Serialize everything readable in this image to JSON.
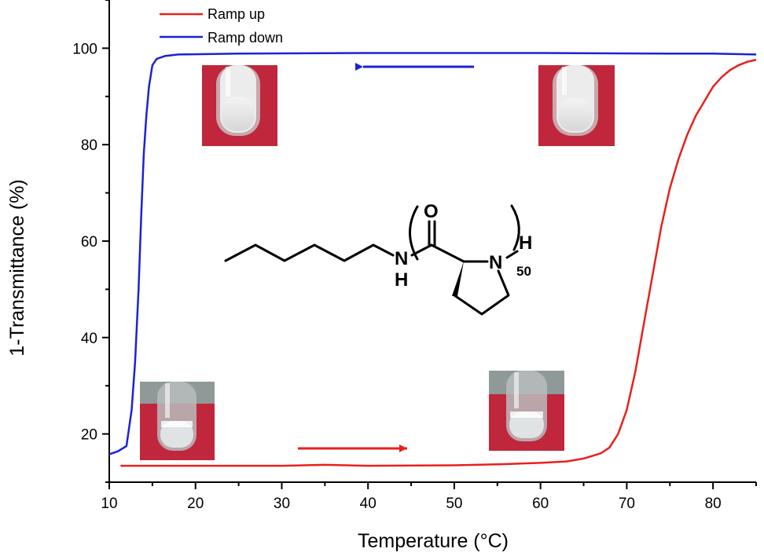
{
  "chart_data": {
    "type": "line",
    "xlabel": "Temperature (°C)",
    "ylabel": "1-Transmittance (%)",
    "xlim": [
      10,
      85
    ],
    "ylim": [
      10,
      110
    ],
    "xticks": [
      10,
      20,
      30,
      40,
      50,
      60,
      70,
      80
    ],
    "yticks": [
      20,
      40,
      60,
      80,
      100
    ],
    "legend": "top-left",
    "grid": false,
    "series": [
      {
        "name": "Ramp up",
        "color": "#e8211d",
        "points": [
          [
            11.3,
            13.4
          ],
          [
            20,
            13.4
          ],
          [
            30,
            13.4
          ],
          [
            35,
            13.6
          ],
          [
            40,
            13.4
          ],
          [
            50,
            13.5
          ],
          [
            55,
            13.7
          ],
          [
            60,
            14.0
          ],
          [
            63,
            14.3
          ],
          [
            65,
            14.9
          ],
          [
            67,
            16.0
          ],
          [
            68,
            17.2
          ],
          [
            69,
            20.0
          ],
          [
            70,
            25.0
          ],
          [
            71,
            33.0
          ],
          [
            72,
            43.0
          ],
          [
            73,
            53.0
          ],
          [
            74,
            63.0
          ],
          [
            75,
            71.0
          ],
          [
            76,
            77.0
          ],
          [
            77,
            82.0
          ],
          [
            78,
            86.0
          ],
          [
            79,
            89.0
          ],
          [
            80,
            92.0
          ],
          [
            81,
            94.0
          ],
          [
            82,
            95.5
          ],
          [
            83,
            96.5
          ],
          [
            84,
            97.2
          ],
          [
            85,
            97.6
          ]
        ]
      },
      {
        "name": "Ramp down",
        "color": "#1c22d4",
        "points": [
          [
            10,
            15.8
          ],
          [
            11,
            16.4
          ],
          [
            12,
            17.5
          ],
          [
            12.6,
            25.0
          ],
          [
            13,
            35.0
          ],
          [
            13.4,
            50.0
          ],
          [
            13.7,
            65.0
          ],
          [
            14.0,
            78.0
          ],
          [
            14.3,
            86.0
          ],
          [
            14.6,
            92.0
          ],
          [
            15.0,
            96.5
          ],
          [
            15.5,
            97.8
          ],
          [
            16.5,
            98.4
          ],
          [
            18,
            98.7
          ],
          [
            25,
            98.9
          ],
          [
            40,
            99.0
          ],
          [
            60,
            99.0
          ],
          [
            75,
            98.9
          ],
          [
            80,
            98.9
          ],
          [
            85,
            98.7
          ]
        ]
      }
    ],
    "annotations": {
      "arrow_ramp_down_color": "#1c22d4",
      "arrow_ramp_up_color": "#e8211d"
    }
  },
  "structure": {
    "labels": {
      "amide_n": "N",
      "amide_h": "H",
      "carbonyl_o": "O",
      "ring_n": "N",
      "end_h": "H",
      "subscript": "50"
    }
  }
}
